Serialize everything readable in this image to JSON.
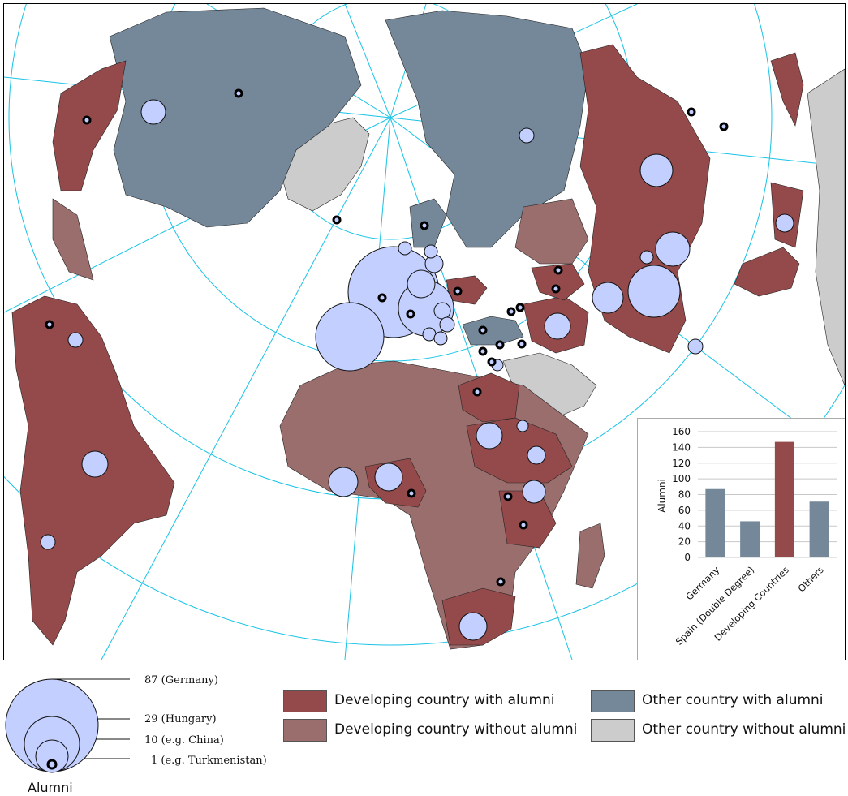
{
  "colors": {
    "developing_with": "#944a4a",
    "developing_without": "#9b6e6e",
    "other_with": "#748899",
    "other_without": "#cccccc",
    "bubble_fill": "#c3cfff",
    "graticule": "#19c3e6",
    "bar_germany": "#748899",
    "bar_spain": "#748899",
    "bar_developing": "#944a4a",
    "bar_others": "#748899"
  },
  "chart_data": {
    "type": "bar",
    "categories": [
      "Germany",
      "Spain (Double Degree)",
      "Developing Countries",
      "Others"
    ],
    "values": [
      87,
      46,
      147,
      71
    ],
    "title": "",
    "xlabel": "",
    "ylabel": "Alumni",
    "ylim": [
      0,
      160
    ],
    "yticks": [
      0,
      20,
      40,
      60,
      80,
      100,
      120,
      140,
      160
    ],
    "grid": true,
    "legend": "none"
  },
  "size_legend": {
    "caption": "Alumni",
    "entries": [
      {
        "value": 87,
        "label": "87 (Germany)"
      },
      {
        "value": 29,
        "label": "29 (Hungary)"
      },
      {
        "value": 10,
        "label": "10 (e.g. China)"
      },
      {
        "value": 1,
        "label": "1 (e.g. Turkmenistan)"
      }
    ]
  },
  "category_legend": [
    {
      "key": "developing_with",
      "label": "Developing country with alumni"
    },
    {
      "key": "developing_without",
      "label": "Developing country without alumni"
    },
    {
      "key": "other_with",
      "label": "Other country with alumni"
    },
    {
      "key": "other_without",
      "label": "Other country without alumni"
    }
  ]
}
